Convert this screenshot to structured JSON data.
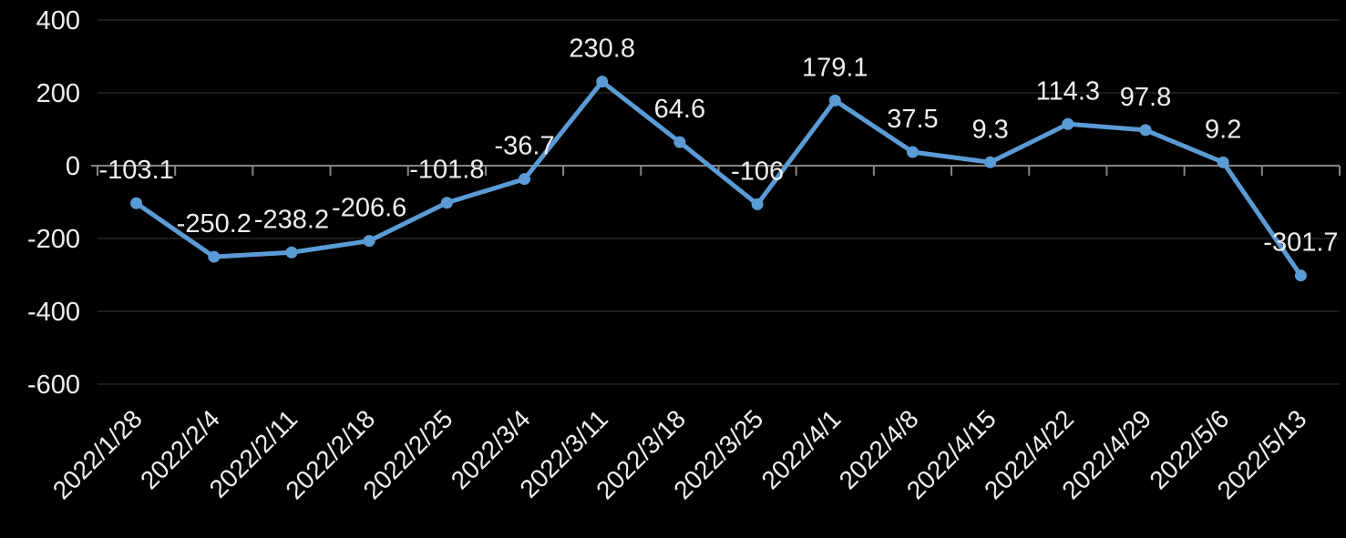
{
  "chart_data": {
    "type": "line",
    "title": "",
    "xlabel": "",
    "ylabel": "",
    "categories": [
      "2022/1/28",
      "2022/2/4",
      "2022/2/11",
      "2022/2/18",
      "2022/2/25",
      "2022/3/4",
      "2022/3/11",
      "2022/3/18",
      "2022/3/25",
      "2022/4/1",
      "2022/4/8",
      "2022/4/15",
      "2022/4/22",
      "2022/4/29",
      "2022/5/6",
      "2022/5/13"
    ],
    "values": [
      -103.1,
      -250.2,
      -238.2,
      -206.6,
      -101.8,
      -36.7,
      230.8,
      64.6,
      -106,
      179.1,
      37.5,
      9.3,
      114.3,
      97.8,
      9.2,
      -301.7
    ],
    "point_labels": [
      "-103.1",
      "-250.2",
      "-238.2",
      "-206.6",
      "-101.8",
      "-36.7",
      "230.8",
      "64.6",
      "-106",
      "179.1",
      "37.5",
      "9.3",
      "114.3",
      "97.8",
      "9.2",
      "-301.7"
    ],
    "ylim": [
      -600,
      400
    ],
    "yticks": [
      400,
      200,
      0,
      -200,
      -400,
      -600
    ],
    "ytick_labels": [
      "400",
      "200",
      "0",
      "-200",
      "-400",
      "-600"
    ],
    "x_label_rotation": -45,
    "grid": true,
    "legend_position": "none",
    "styles": {
      "background_color": "#000000",
      "line_color": "#5b9bd5",
      "marker_color": "#5b9bd5",
      "gridline_color": "#2e2e2e",
      "axis_line_color": "#858585",
      "tick_color": "#858585",
      "text_color": "#efefef"
    }
  }
}
